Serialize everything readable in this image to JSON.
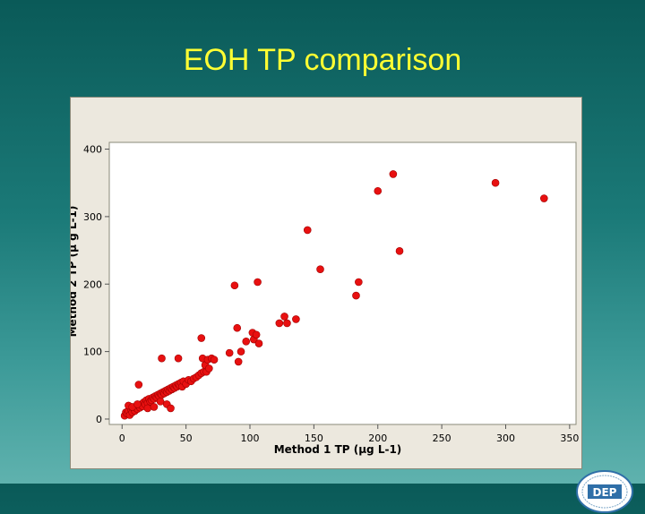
{
  "slide": {
    "title": "EOH TP comparison"
  },
  "logo": {
    "text": "DEP"
  },
  "chart_data": {
    "type": "scatter",
    "title": "",
    "xlabel": "Method 1 TP (μg L-1)",
    "ylabel": "Method 2 TP (μ g L-1)",
    "xlim": [
      -10,
      355
    ],
    "ylim": [
      -8,
      410
    ],
    "x_ticks": [
      0,
      50,
      100,
      150,
      200,
      250,
      300,
      350
    ],
    "y_ticks": [
      0,
      100,
      200,
      300,
      400
    ],
    "grid": false,
    "marker_color": "#e81010",
    "series": [
      {
        "name": "",
        "points": [
          [
            2,
            5
          ],
          [
            3,
            10
          ],
          [
            4,
            8
          ],
          [
            5,
            12
          ],
          [
            6,
            6
          ],
          [
            7,
            14
          ],
          [
            8,
            10
          ],
          [
            9,
            16
          ],
          [
            10,
            12
          ],
          [
            11,
            18
          ],
          [
            12,
            15
          ],
          [
            13,
            20
          ],
          [
            14,
            17
          ],
          [
            15,
            22
          ],
          [
            16,
            19
          ],
          [
            17,
            25
          ],
          [
            18,
            22
          ],
          [
            19,
            28
          ],
          [
            20,
            24
          ],
          [
            21,
            30
          ],
          [
            22,
            26
          ],
          [
            23,
            28
          ],
          [
            24,
            32
          ],
          [
            25,
            30
          ],
          [
            26,
            34
          ],
          [
            27,
            32
          ],
          [
            28,
            36
          ],
          [
            29,
            34
          ],
          [
            30,
            38
          ],
          [
            31,
            36
          ],
          [
            32,
            40
          ],
          [
            33,
            38
          ],
          [
            34,
            42
          ],
          [
            35,
            40
          ],
          [
            36,
            44
          ],
          [
            37,
            42
          ],
          [
            38,
            46
          ],
          [
            39,
            44
          ],
          [
            40,
            48
          ],
          [
            41,
            46
          ],
          [
            42,
            50
          ],
          [
            43,
            48
          ],
          [
            44,
            52
          ],
          [
            45,
            50
          ],
          [
            46,
            54
          ],
          [
            47,
            48
          ],
          [
            48,
            56
          ],
          [
            50,
            52
          ],
          [
            52,
            58
          ],
          [
            54,
            56
          ],
          [
            56,
            60
          ],
          [
            58,
            62
          ],
          [
            60,
            65
          ],
          [
            62,
            68
          ],
          [
            64,
            70
          ],
          [
            5,
            20
          ],
          [
            8,
            18
          ],
          [
            12,
            22
          ],
          [
            20,
            16
          ],
          [
            25,
            18
          ],
          [
            30,
            26
          ],
          [
            35,
            22
          ],
          [
            38,
            16
          ],
          [
            13,
            51
          ],
          [
            31,
            90
          ],
          [
            44,
            90
          ],
          [
            62,
            120
          ],
          [
            63,
            90
          ],
          [
            65,
            80
          ],
          [
            66,
            70
          ],
          [
            67,
            88
          ],
          [
            68,
            75
          ],
          [
            70,
            90
          ],
          [
            72,
            88
          ],
          [
            84,
            98
          ],
          [
            88,
            198
          ],
          [
            90,
            135
          ],
          [
            91,
            85
          ],
          [
            93,
            100
          ],
          [
            97,
            115
          ],
          [
            102,
            128
          ],
          [
            103,
            118
          ],
          [
            105,
            125
          ],
          [
            106,
            203
          ],
          [
            107,
            112
          ],
          [
            123,
            142
          ],
          [
            127,
            152
          ],
          [
            129,
            142
          ],
          [
            136,
            148
          ],
          [
            145,
            280
          ],
          [
            155,
            222
          ],
          [
            183,
            183
          ],
          [
            185,
            203
          ],
          [
            200,
            338
          ],
          [
            212,
            363
          ],
          [
            217,
            249
          ],
          [
            292,
            350
          ],
          [
            330,
            327
          ]
        ]
      }
    ]
  }
}
